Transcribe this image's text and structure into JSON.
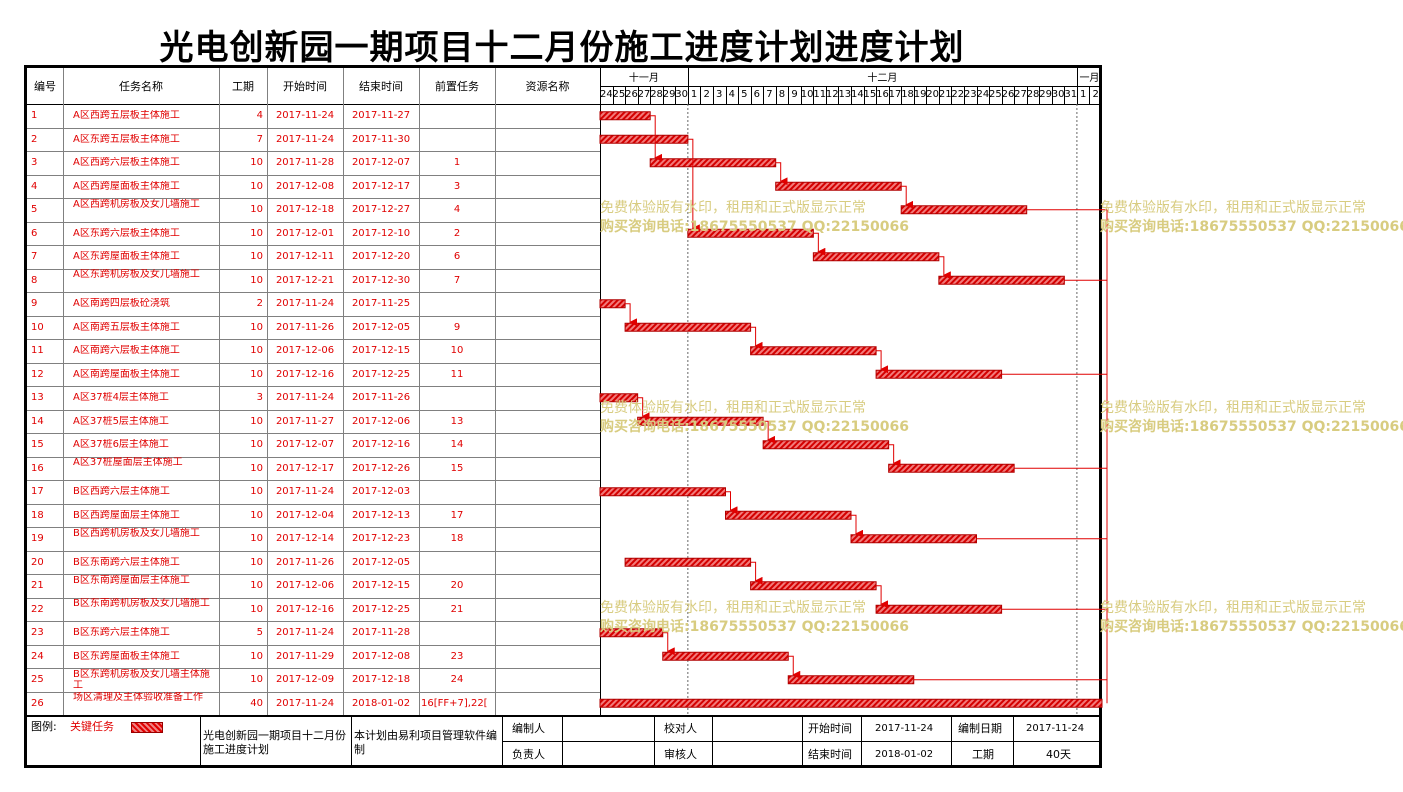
{
  "title": "光电创新园一期项目十二月份施工进度计划进度计划",
  "headers": {
    "id": "编号",
    "name": "任务名称",
    "duration": "工期",
    "start": "开始时间",
    "end": "结束时间",
    "pred": "前置任务",
    "resource": "资源名称"
  },
  "months": [
    {
      "label": "十一月",
      "start_day": 0,
      "end_day": 7
    },
    {
      "label": "十二月",
      "start_day": 7,
      "end_day": 38
    },
    {
      "label": "一月",
      "start_day": 38,
      "end_day": 40
    }
  ],
  "days": [
    "24",
    "25",
    "26",
    "27",
    "28",
    "29",
    "30",
    "1",
    "2",
    "3",
    "4",
    "5",
    "6",
    "7",
    "8",
    "9",
    "10",
    "11",
    "12",
    "13",
    "14",
    "15",
    "16",
    "17",
    "18",
    "19",
    "20",
    "21",
    "22",
    "23",
    "24",
    "25",
    "26",
    "27",
    "28",
    "29",
    "30",
    "31",
    "1",
    "2"
  ],
  "tasks": [
    {
      "id": "1",
      "name": "A区西跨五层板主体施工",
      "duration": "4",
      "start": "2017-11-24",
      "end": "2017-11-27",
      "pred": "",
      "s": 0,
      "e": 4
    },
    {
      "id": "2",
      "name": "A区东跨五层板主体施工",
      "duration": "7",
      "start": "2017-11-24",
      "end": "2017-11-30",
      "pred": "",
      "s": 0,
      "e": 7
    },
    {
      "id": "3",
      "name": "A区西跨六层板主体施工",
      "duration": "10",
      "start": "2017-11-28",
      "end": "2017-12-07",
      "pred": "1",
      "s": 4,
      "e": 14
    },
    {
      "id": "4",
      "name": "A区西跨屋面板主体施工",
      "duration": "10",
      "start": "2017-12-08",
      "end": "2017-12-17",
      "pred": "3",
      "s": 14,
      "e": 24
    },
    {
      "id": "5",
      "name": "A区西跨机房板及女儿墙施工",
      "duration": "10",
      "start": "2017-12-18",
      "end": "2017-12-27",
      "pred": "4",
      "s": 24,
      "e": 34
    },
    {
      "id": "6",
      "name": "A区东跨六层板主体施工",
      "duration": "10",
      "start": "2017-12-01",
      "end": "2017-12-10",
      "pred": "2",
      "s": 7,
      "e": 17
    },
    {
      "id": "7",
      "name": "A区东跨屋面板主体施工",
      "duration": "10",
      "start": "2017-12-11",
      "end": "2017-12-20",
      "pred": "6",
      "s": 17,
      "e": 27
    },
    {
      "id": "8",
      "name": "A区东跨机房板及女儿墙施工",
      "duration": "10",
      "start": "2017-12-21",
      "end": "2017-12-30",
      "pred": "7",
      "s": 27,
      "e": 37
    },
    {
      "id": "9",
      "name": "A区南跨四层板砼浇筑",
      "duration": "2",
      "start": "2017-11-24",
      "end": "2017-11-25",
      "pred": "",
      "s": 0,
      "e": 2
    },
    {
      "id": "10",
      "name": "A区南跨五层板主体施工",
      "duration": "10",
      "start": "2017-11-26",
      "end": "2017-12-05",
      "pred": "9",
      "s": 2,
      "e": 12
    },
    {
      "id": "11",
      "name": "A区南跨六层板主体施工",
      "duration": "10",
      "start": "2017-12-06",
      "end": "2017-12-15",
      "pred": "10",
      "s": 12,
      "e": 22
    },
    {
      "id": "12",
      "name": "A区南跨屋面板主体施工",
      "duration": "10",
      "start": "2017-12-16",
      "end": "2017-12-25",
      "pred": "11",
      "s": 22,
      "e": 32
    },
    {
      "id": "13",
      "name": "A区37桩4层主体施工",
      "duration": "3",
      "start": "2017-11-24",
      "end": "2017-11-26",
      "pred": "",
      "s": 0,
      "e": 3
    },
    {
      "id": "14",
      "name": "A区37桩5层主体施工",
      "duration": "10",
      "start": "2017-11-27",
      "end": "2017-12-06",
      "pred": "13",
      "s": 3,
      "e": 13
    },
    {
      "id": "15",
      "name": "A区37桩6层主体施工",
      "duration": "10",
      "start": "2017-12-07",
      "end": "2017-12-16",
      "pred": "14",
      "s": 13,
      "e": 23
    },
    {
      "id": "16",
      "name": "A区37桩屋面层主体施工",
      "duration": "10",
      "start": "2017-12-17",
      "end": "2017-12-26",
      "pred": "15",
      "s": 23,
      "e": 33
    },
    {
      "id": "17",
      "name": "B区西跨六层主体施工",
      "duration": "10",
      "start": "2017-11-24",
      "end": "2017-12-03",
      "pred": "",
      "s": 0,
      "e": 10
    },
    {
      "id": "18",
      "name": "B区西跨屋面层主体施工",
      "duration": "10",
      "start": "2017-12-04",
      "end": "2017-12-13",
      "pred": "17",
      "s": 10,
      "e": 20
    },
    {
      "id": "19",
      "name": "B区西跨机房板及女儿墙施工",
      "duration": "10",
      "start": "2017-12-14",
      "end": "2017-12-23",
      "pred": "18",
      "s": 20,
      "e": 30
    },
    {
      "id": "20",
      "name": "B区东南跨六层主体施工",
      "duration": "10",
      "start": "2017-11-26",
      "end": "2017-12-05",
      "pred": "",
      "s": 2,
      "e": 12
    },
    {
      "id": "21",
      "name": "B区东南跨屋面层主体施工",
      "duration": "10",
      "start": "2017-12-06",
      "end": "2017-12-15",
      "pred": "20",
      "s": 12,
      "e": 22
    },
    {
      "id": "22",
      "name": "B区东南跨机房板及女儿墙施工",
      "duration": "10",
      "start": "2017-12-16",
      "end": "2017-12-25",
      "pred": "21",
      "s": 22,
      "e": 32
    },
    {
      "id": "23",
      "name": "B区东跨六层主体施工",
      "duration": "5",
      "start": "2017-11-24",
      "end": "2017-11-28",
      "pred": "",
      "s": 0,
      "e": 5
    },
    {
      "id": "24",
      "name": "B区东跨屋面板主体施工",
      "duration": "10",
      "start": "2017-11-29",
      "end": "2017-12-08",
      "pred": "23",
      "s": 5,
      "e": 15
    },
    {
      "id": "25",
      "name": "B区东跨机房板及女儿墙主体施工",
      "duration": "10",
      "start": "2017-12-09",
      "end": "2017-12-18",
      "pred": "24",
      "s": 15,
      "e": 25
    },
    {
      "id": "26",
      "name": "场区清理及主体验收准备工作",
      "duration": "40",
      "start": "2017-11-24",
      "end": "2018-01-02",
      "pred": "16[FF+7],22[",
      "s": 0,
      "e": 40
    }
  ],
  "links": [
    [
      1,
      3
    ],
    [
      3,
      4
    ],
    [
      4,
      5
    ],
    [
      2,
      6
    ],
    [
      6,
      7
    ],
    [
      7,
      8
    ],
    [
      9,
      10
    ],
    [
      10,
      11
    ],
    [
      11,
      12
    ],
    [
      13,
      14
    ],
    [
      14,
      15
    ],
    [
      15,
      16
    ],
    [
      17,
      18
    ],
    [
      18,
      19
    ],
    [
      20,
      21
    ],
    [
      21,
      22
    ],
    [
      23,
      24
    ],
    [
      24,
      25
    ]
  ],
  "watermark": {
    "line1": "免费体验版有水印，租用和正式版显示正常",
    "line2": "购买咨询电话:18675550537 QQ:22150066"
  },
  "footer": {
    "legend_label": "图例:",
    "legend_item": "关键任务",
    "project_name": "光电创新园一期项目十二月份施工进度计划",
    "software_note": "本计划由易利项目管理软件编制",
    "compiler_label": "编制人",
    "checker_label": "校对人",
    "responsible_label": "负责人",
    "reviewer_label": "审核人",
    "start_label": "开始时间",
    "start_value": "2017-11-24",
    "end_label": "结束时间",
    "end_value": "2018-01-02",
    "date_label": "编制日期",
    "date_value": "2017-11-24",
    "duration_label": "工期",
    "duration_value": "40天"
  },
  "colors": {
    "bar": "#e00000",
    "text": "#e00000",
    "watermark": "#d8cc80"
  }
}
